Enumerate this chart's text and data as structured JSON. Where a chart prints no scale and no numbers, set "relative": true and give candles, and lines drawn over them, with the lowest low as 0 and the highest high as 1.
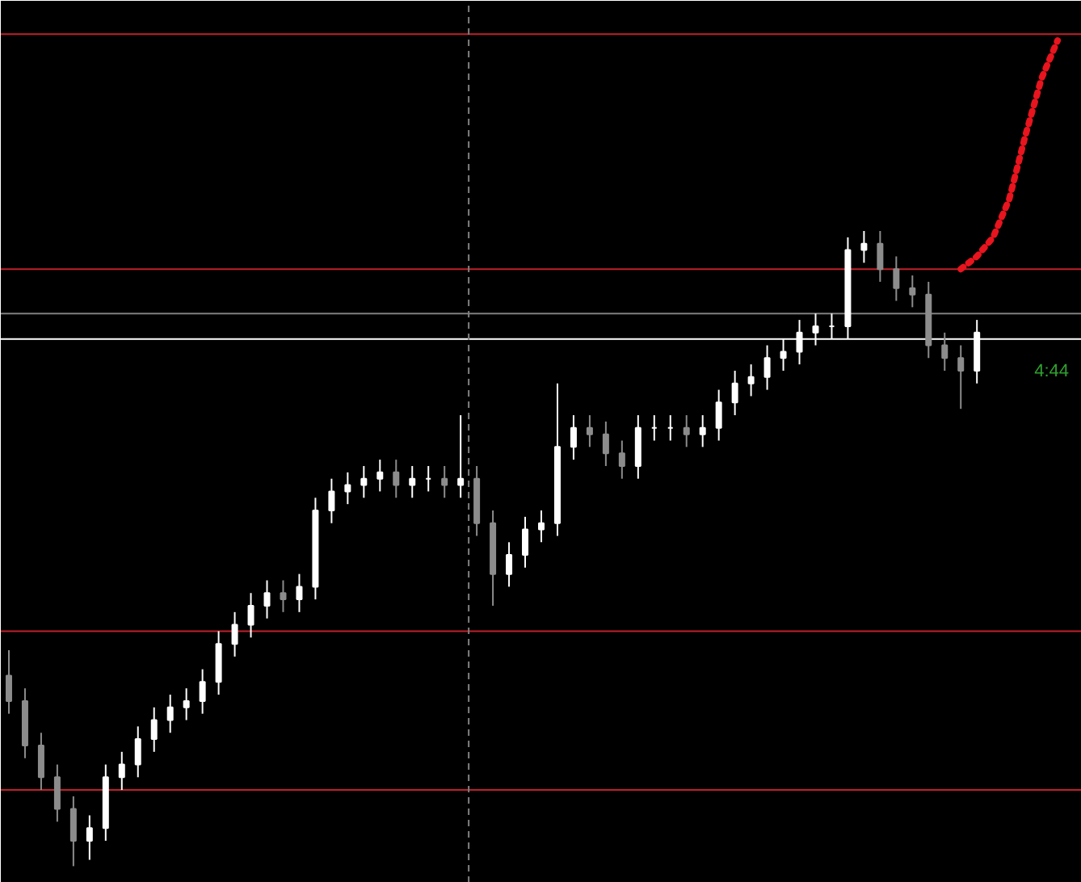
{
  "chart_data": {
    "type": "candlestick",
    "relative": true,
    "grid": false,
    "categories": [
      null,
      null,
      null,
      null,
      null,
      null,
      null,
      null,
      null,
      null,
      null,
      null,
      null,
      null,
      null,
      null,
      null,
      null,
      null,
      null,
      null,
      null,
      null,
      null,
      null,
      null,
      null,
      null,
      null,
      null,
      null,
      null,
      null,
      null,
      null,
      null,
      null,
      null,
      null,
      null,
      null,
      null,
      null,
      null,
      null,
      null,
      null,
      null,
      null,
      null,
      null,
      null,
      null,
      null,
      null,
      null,
      null,
      null,
      null,
      null,
      null,
      null,
      null,
      null,
      null,
      null
    ],
    "colors": [
      "#8c8c8c",
      "#8c8c8c",
      "#8c8c8c",
      "#8c8c8c",
      "#8c8c8c",
      "#ffffff",
      "#ffffff",
      "#ffffff",
      "#ffffff",
      "#ffffff",
      "#ffffff",
      "#ffffff",
      "#ffffff",
      "#ffffff",
      "#ffffff",
      "#ffffff",
      "#ffffff",
      "#8c8c8c",
      "#ffffff",
      "#ffffff",
      "#ffffff",
      "#ffffff",
      "#ffffff",
      "#ffffff",
      "#8c8c8c",
      "#ffffff",
      "#ffffff",
      "#8c8c8c",
      "#ffffff",
      "#8c8c8c",
      "#8c8c8c",
      "#ffffff",
      "#ffffff",
      "#ffffff",
      "#ffffff",
      "#ffffff",
      "#8c8c8c",
      "#8c8c8c",
      "#8c8c8c",
      "#ffffff",
      "#ffffff",
      "#ffffff",
      "#8c8c8c",
      "#ffffff",
      "#ffffff",
      "#ffffff",
      "#ffffff",
      "#ffffff",
      "#ffffff",
      "#ffffff",
      "#ffffff",
      "#ffffff",
      "#ffffff",
      "#ffffff",
      "#8c8c8c",
      "#8c8c8c",
      "#8c8c8c",
      "#8c8c8c",
      "#8c8c8c",
      "#8c8c8c",
      "#ffffff",
      null,
      null,
      null,
      null,
      null
    ],
    "ohlc": [
      [
        0.3,
        0.34,
        0.24,
        0.26
      ],
      [
        0.26,
        0.28,
        0.17,
        0.19
      ],
      [
        0.19,
        0.21,
        0.12,
        0.14
      ],
      [
        0.14,
        0.16,
        0.07,
        0.09
      ],
      [
        0.09,
        0.11,
        0.0,
        0.04
      ],
      [
        0.04,
        0.08,
        0.01,
        0.06
      ],
      [
        0.06,
        0.16,
        0.04,
        0.14
      ],
      [
        0.14,
        0.18,
        0.12,
        0.16
      ],
      [
        0.16,
        0.22,
        0.14,
        0.2
      ],
      [
        0.2,
        0.25,
        0.18,
        0.23
      ],
      [
        0.23,
        0.27,
        0.21,
        0.25
      ],
      [
        0.25,
        0.28,
        0.23,
        0.26
      ],
      [
        0.26,
        0.31,
        0.24,
        0.29
      ],
      [
        0.29,
        0.37,
        0.27,
        0.35
      ],
      [
        0.35,
        0.4,
        0.33,
        0.38
      ],
      [
        0.38,
        0.43,
        0.36,
        0.41
      ],
      [
        0.41,
        0.45,
        0.39,
        0.43
      ],
      [
        0.43,
        0.45,
        0.4,
        0.42
      ],
      [
        0.42,
        0.46,
        0.4,
        0.44
      ],
      [
        0.44,
        0.58,
        0.42,
        0.56
      ],
      [
        0.56,
        0.61,
        0.54,
        0.59
      ],
      [
        0.59,
        0.62,
        0.57,
        0.6
      ],
      [
        0.6,
        0.63,
        0.58,
        0.61
      ],
      [
        0.61,
        0.64,
        0.59,
        0.62
      ],
      [
        0.62,
        0.64,
        0.58,
        0.6
      ],
      [
        0.6,
        0.63,
        0.58,
        0.61
      ],
      [
        0.61,
        0.63,
        0.59,
        0.61
      ],
      [
        0.61,
        0.63,
        0.58,
        0.6
      ],
      [
        0.6,
        0.71,
        0.58,
        0.61
      ],
      [
        0.61,
        0.63,
        0.52,
        0.54
      ],
      [
        0.54,
        0.56,
        0.41,
        0.46
      ],
      [
        0.46,
        0.51,
        0.44,
        0.49
      ],
      [
        0.49,
        0.55,
        0.47,
        0.53
      ],
      [
        0.53,
        0.56,
        0.51,
        0.54
      ],
      [
        0.54,
        0.76,
        0.52,
        0.66
      ],
      [
        0.66,
        0.71,
        0.64,
        0.69
      ],
      [
        0.69,
        0.71,
        0.66,
        0.68
      ],
      [
        0.68,
        0.7,
        0.63,
        0.65
      ],
      [
        0.65,
        0.67,
        0.61,
        0.63
      ],
      [
        0.63,
        0.71,
        0.61,
        0.69
      ],
      [
        0.69,
        0.71,
        0.67,
        0.69
      ],
      [
        0.69,
        0.71,
        0.67,
        0.69
      ],
      [
        0.69,
        0.71,
        0.66,
        0.68
      ],
      [
        0.68,
        0.71,
        0.66,
        0.69
      ],
      [
        0.69,
        0.75,
        0.67,
        0.73
      ],
      [
        0.73,
        0.78,
        0.71,
        0.76
      ],
      [
        0.76,
        0.79,
        0.74,
        0.77
      ],
      [
        0.77,
        0.82,
        0.75,
        0.8
      ],
      [
        0.8,
        0.83,
        0.78,
        0.81
      ],
      [
        0.81,
        0.86,
        0.79,
        0.84
      ],
      [
        0.84,
        0.87,
        0.82,
        0.85
      ],
      [
        0.85,
        0.87,
        0.83,
        0.85
      ],
      [
        0.85,
        0.99,
        0.83,
        0.97
      ],
      [
        0.97,
        1.0,
        0.95,
        0.98
      ],
      [
        0.98,
        1.0,
        0.92,
        0.94
      ],
      [
        0.94,
        0.96,
        0.89,
        0.91
      ],
      [
        0.91,
        0.93,
        0.88,
        0.9
      ],
      [
        0.9,
        0.92,
        0.8,
        0.82
      ],
      [
        0.82,
        0.84,
        0.78,
        0.8
      ],
      [
        0.8,
        0.82,
        0.72,
        0.78
      ],
      [
        0.78,
        0.86,
        0.76,
        0.84
      ],
      null,
      null,
      null,
      null,
      null
    ],
    "series": [
      {
        "type": "line",
        "line_style": "dotted",
        "color": "#e8141e",
        "values": [
          null,
          null,
          null,
          null,
          null,
          null,
          null,
          null,
          null,
          null,
          null,
          null,
          null,
          null,
          null,
          null,
          null,
          null,
          null,
          null,
          null,
          null,
          null,
          null,
          null,
          null,
          null,
          null,
          null,
          null,
          null,
          null,
          null,
          null,
          null,
          null,
          null,
          null,
          null,
          null,
          null,
          null,
          null,
          null,
          null,
          null,
          null,
          null,
          null,
          null,
          null,
          null,
          null,
          null,
          null,
          null,
          null,
          null,
          null,
          0.94,
          0.96,
          0.99,
          1.05,
          1.15,
          1.24,
          1.3
        ]
      }
    ],
    "ref_lines": [
      {
        "axis": "y",
        "value": 1.31,
        "color": "#c0202a"
      },
      {
        "axis": "y",
        "value": 0.94,
        "color": "#c0202a"
      },
      {
        "axis": "y",
        "value": 0.87,
        "color": "#808080"
      },
      {
        "axis": "y",
        "value": 0.83,
        "color": "#ffffff"
      },
      {
        "axis": "y",
        "value": 0.37,
        "color": "#c0202a"
      },
      {
        "axis": "y",
        "value": 0.12,
        "color": "#c0202a"
      }
    ],
    "annotations": [
      "4:44"
    ]
  }
}
